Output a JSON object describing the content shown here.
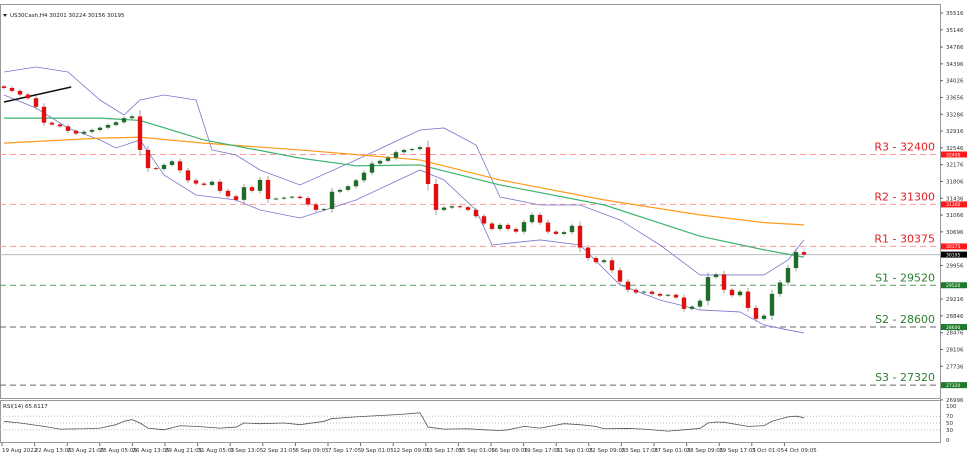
{
  "header": {
    "title": "US30Cash,H4  30201  30224  30156  30195"
  },
  "rsi_label": "RSI(14) 65.6117",
  "colors": {
    "bull": "#1e6b2a",
    "bear": "#e01010",
    "ma_fast": "#3cb371",
    "ma_slow": "#ff9a1a",
    "bands": "#7777cc",
    "resistance": "#ff6666",
    "support_s1": "#2e8b3a",
    "support_dark": "#555555",
    "current": "#000000"
  },
  "chart_data": {
    "type": "candlestick",
    "symbol": "US30Cash",
    "timeframe": "H4",
    "ylim": [
      26996,
      35700
    ],
    "y_ticks": [
      35516,
      35146,
      34766,
      34396,
      34026,
      33656,
      33286,
      32916,
      32546,
      32176,
      31806,
      31436,
      31066,
      30696,
      29956,
      29216,
      28846,
      28476,
      28106,
      27736,
      26996
    ],
    "x_ticks": [
      "19 Aug 2022",
      "22 Aug 13:05",
      "23 Aug 21:05",
      "25 Aug 05:05",
      "26 Aug 13:05",
      "29 Aug 21:05",
      "31 Aug 05:05",
      "1 Sep 13:05",
      "2 Sep 21:05",
      "6 Sep 09:05",
      "7 Sep 17:05",
      "9 Sep 01:05",
      "12 Sep 09:05",
      "13 Sep 17:05",
      "15 Sep 01:05",
      "16 Sep 09:05",
      "19 Sep 17:05",
      "21 Sep 01:05",
      "22 Sep 09:05",
      "23 Sep 17:05",
      "27 Sep 01:05",
      "28 Sep 09:05",
      "29 Sep 17:05",
      "3 Oct 01:05",
      "4 Oct 09:05"
    ],
    "first_open": 33900,
    "close": [
      33865,
      33800,
      33720,
      33640,
      33450,
      33100,
      33060,
      33020,
      32920,
      32860,
      32900,
      32940,
      32990,
      33050,
      33110,
      33200,
      33240,
      32500,
      32100,
      32080,
      32170,
      32250,
      32050,
      31830,
      31760,
      31730,
      31800,
      31600,
      31480,
      31400,
      31680,
      31600,
      31840,
      31420,
      31430,
      31450,
      31470,
      31440,
      31300,
      31180,
      31200,
      31580,
      31620,
      31700,
      31830,
      32000,
      32200,
      32260,
      32330,
      32450,
      32500,
      32520,
      32560,
      31750,
      31180,
      31230,
      31260,
      31240,
      31180,
      31040,
      30880,
      30760,
      30850,
      30760,
      30700,
      30910,
      31070,
      30900,
      30700,
      30650,
      30690,
      30830,
      30350,
      30120,
      30030,
      30070,
      29850,
      29600,
      29420,
      29360,
      29380,
      29330,
      29290,
      29310,
      29250,
      29000,
      29050,
      29180,
      29700,
      29760,
      29420,
      29300,
      29380,
      29020,
      28780,
      28850,
      29330,
      29580,
      29900,
      30250,
      30195
    ],
    "current_price": 30195,
    "levels": [
      {
        "label": "R3 - 32400",
        "value": 32400,
        "tag": "32400",
        "kind": "resistance"
      },
      {
        "label": "R2 - 31300",
        "value": 31300,
        "tag": "31300",
        "kind": "resistance"
      },
      {
        "label": "R1 - 30375",
        "value": 30375,
        "tag": "30375",
        "kind": "resistance"
      },
      {
        "label": "S1 - 29520",
        "value": 29520,
        "tag": "29520",
        "kind": "support_s1"
      },
      {
        "label": "S2 - 28600",
        "value": 28600,
        "tag": "28600",
        "kind": "support_dark"
      },
      {
        "label": "S3 - 27320",
        "value": 27320,
        "tag": "27320",
        "kind": "support_dark"
      }
    ],
    "current_tag": "30195",
    "ma_fast": [
      [
        0,
        33200
      ],
      [
        12,
        33200
      ],
      [
        17,
        33150
      ],
      [
        25,
        32720
      ],
      [
        37,
        32320
      ],
      [
        44,
        32150
      ],
      [
        52,
        32170
      ],
      [
        62,
        31730
      ],
      [
        75,
        31290
      ],
      [
        87,
        30600
      ],
      [
        95,
        30300
      ],
      [
        100,
        30140
      ]
    ],
    "ma_slow": [
      [
        0,
        32650
      ],
      [
        12,
        32760
      ],
      [
        17,
        32780
      ],
      [
        25,
        32650
      ],
      [
        37,
        32500
      ],
      [
        52,
        32280
      ],
      [
        62,
        31840
      ],
      [
        75,
        31400
      ],
      [
        87,
        31070
      ],
      [
        95,
        30900
      ],
      [
        100,
        30850
      ]
    ],
    "bb_upper": [
      [
        0,
        34217
      ],
      [
        4,
        34327
      ],
      [
        8,
        34217
      ],
      [
        12,
        33600
      ],
      [
        15,
        33270
      ],
      [
        17,
        33600
      ],
      [
        20,
        33710
      ],
      [
        24,
        33600
      ],
      [
        26,
        32500
      ],
      [
        29,
        32389
      ],
      [
        32,
        32059
      ],
      [
        37,
        31729
      ],
      [
        44,
        32279
      ],
      [
        52,
        32940
      ],
      [
        55,
        32984
      ],
      [
        59,
        32609
      ],
      [
        62,
        31464
      ],
      [
        67,
        31288
      ],
      [
        72,
        31288
      ],
      [
        77,
        30958
      ],
      [
        82,
        30407
      ],
      [
        87,
        29747
      ],
      [
        95,
        29747
      ],
      [
        98,
        30077
      ],
      [
        100,
        30518
      ]
    ],
    "bb_lower": [
      [
        0,
        33710
      ],
      [
        4,
        33424
      ],
      [
        8,
        32984
      ],
      [
        12,
        32719
      ],
      [
        14,
        32543
      ],
      [
        17,
        32719
      ],
      [
        20,
        31949
      ],
      [
        24,
        31508
      ],
      [
        29,
        31398
      ],
      [
        32,
        31178
      ],
      [
        37,
        31002
      ],
      [
        44,
        31398
      ],
      [
        52,
        32059
      ],
      [
        55,
        31839
      ],
      [
        59,
        31178
      ],
      [
        61,
        30407
      ],
      [
        67,
        30518
      ],
      [
        72,
        30407
      ],
      [
        77,
        29527
      ],
      [
        82,
        29196
      ],
      [
        87,
        28976
      ],
      [
        92,
        28932
      ],
      [
        95,
        28646
      ],
      [
        98,
        28536
      ],
      [
        100,
        28470
      ]
    ],
    "trendline": [
      [
        0,
        33556
      ],
      [
        8.4,
        33886
      ]
    ],
    "rsi": {
      "period": 14,
      "value": 65.6117,
      "ylim": [
        0,
        100
      ],
      "levels": [
        70,
        50,
        30
      ],
      "y_ticks": [
        100,
        70,
        50,
        30,
        0
      ],
      "points": [
        [
          0,
          55
        ],
        [
          2,
          50
        ],
        [
          5,
          40
        ],
        [
          7,
          32
        ],
        [
          10,
          33
        ],
        [
          12,
          35
        ],
        [
          14,
          45
        ],
        [
          15,
          55
        ],
        [
          16,
          60
        ],
        [
          17,
          50
        ],
        [
          18,
          35
        ],
        [
          20,
          30
        ],
        [
          22,
          42
        ],
        [
          24,
          40
        ],
        [
          27,
          35
        ],
        [
          29,
          38
        ],
        [
          30,
          50
        ],
        [
          32,
          48
        ],
        [
          35,
          50
        ],
        [
          37,
          45
        ],
        [
          40,
          55
        ],
        [
          41,
          63
        ],
        [
          44,
          68
        ],
        [
          47,
          72
        ],
        [
          50,
          76
        ],
        [
          52,
          80
        ],
        [
          53,
          38
        ],
        [
          55,
          32
        ],
        [
          58,
          33
        ],
        [
          60,
          30
        ],
        [
          62,
          28
        ],
        [
          63,
          30
        ],
        [
          65,
          40
        ],
        [
          67,
          35
        ],
        [
          70,
          48
        ],
        [
          72,
          45
        ],
        [
          74,
          40
        ],
        [
          75,
          33
        ],
        [
          78,
          34
        ],
        [
          80,
          32
        ],
        [
          82,
          28
        ],
        [
          83,
          26
        ],
        [
          85,
          30
        ],
        [
          87,
          34
        ],
        [
          88,
          50
        ],
        [
          89,
          53
        ],
        [
          90,
          52
        ],
        [
          92,
          44
        ],
        [
          93,
          40
        ],
        [
          95,
          42
        ],
        [
          96,
          55
        ],
        [
          98,
          68
        ],
        [
          99,
          70
        ],
        [
          100,
          65.6
        ]
      ]
    }
  }
}
